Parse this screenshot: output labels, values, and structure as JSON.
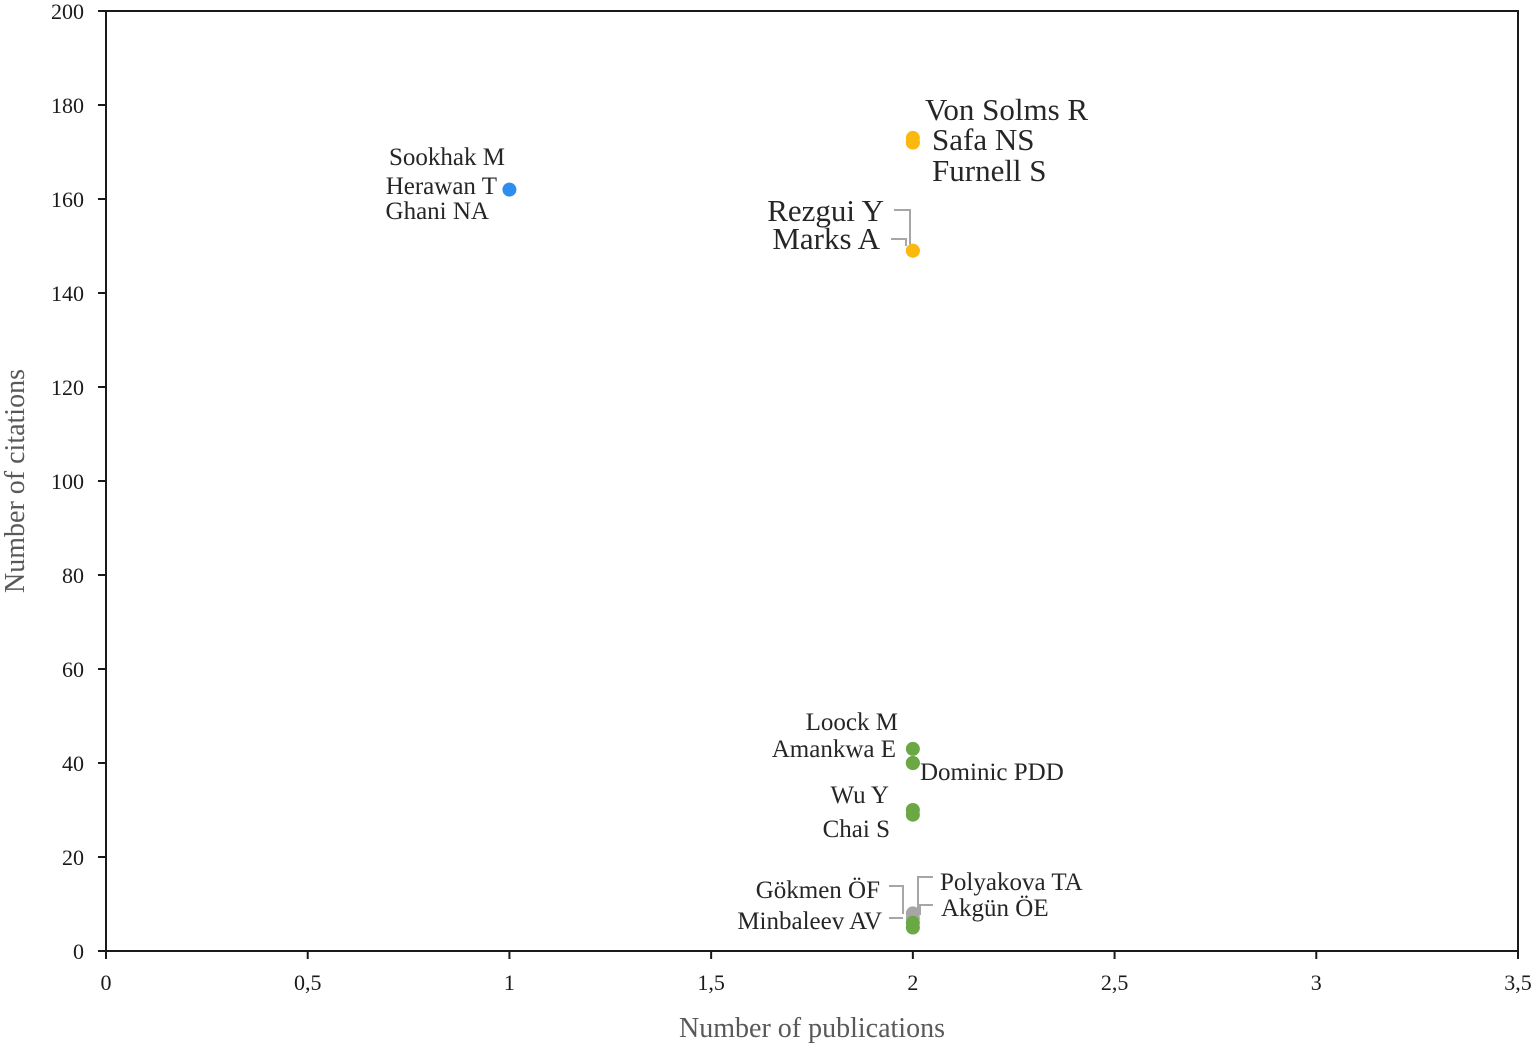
{
  "chart_data": {
    "type": "scatter",
    "title": "",
    "xlabel": "Number of publications",
    "ylabel": "Number of citations",
    "xlim": [
      0,
      3.5
    ],
    "ylim": [
      0,
      200
    ],
    "x_ticks": [
      0,
      0.5,
      1,
      1.5,
      2,
      2.5,
      3,
      3.5
    ],
    "x_tick_labels": [
      "0",
      "0,5",
      "1",
      "1,5",
      "2",
      "2,5",
      "3",
      "3,5"
    ],
    "y_ticks": [
      0,
      20,
      40,
      60,
      80,
      100,
      120,
      140,
      160,
      180,
      200
    ],
    "y_tick_labels": [
      "0",
      "20",
      "40",
      "60",
      "80",
      "100",
      "120",
      "140",
      "160",
      "180",
      "200"
    ],
    "grid": false,
    "legend": "none",
    "colors": {
      "blue": "#2e8ef0",
      "orange": "#fbb80e",
      "green": "#6aa843",
      "grey": "#a6a6a6"
    },
    "points": [
      {
        "x": 1,
        "y": 162,
        "color": "#2e8ef0",
        "labels": [
          "Sookhak M",
          "Herawan T",
          "Ghani NA"
        ]
      },
      {
        "x": 2,
        "y": 173,
        "color": "#fbb80e",
        "labels": [
          "Von Solms R"
        ]
      },
      {
        "x": 2,
        "y": 172,
        "color": "#fbb80e",
        "labels": [
          "Safa NS"
        ]
      },
      {
        "x": 2,
        "y": 172,
        "color": "#fbb80e",
        "labels": [
          "Furnell S"
        ]
      },
      {
        "x": 2,
        "y": 149,
        "color": "#fbb80e",
        "labels": [
          "Rezgui Y"
        ]
      },
      {
        "x": 2,
        "y": 149,
        "color": "#fbb80e",
        "labels": [
          "Marks A"
        ]
      },
      {
        "x": 2,
        "y": 43,
        "color": "#6aa843",
        "labels": [
          "Loock M"
        ]
      },
      {
        "x": 2,
        "y": 40,
        "color": "#6aa843",
        "labels": [
          "Amankwa E"
        ]
      },
      {
        "x": 2,
        "y": 40,
        "color": "#6aa843",
        "labels": [
          "Dominic PDD"
        ]
      },
      {
        "x": 2,
        "y": 30,
        "color": "#6aa843",
        "labels": [
          "Wu Y"
        ]
      },
      {
        "x": 2,
        "y": 29,
        "color": "#6aa843",
        "labels": [
          "Chai S"
        ]
      },
      {
        "x": 2,
        "y": 8,
        "color": "#a6a6a6",
        "labels": [
          "Gökmen ÖF"
        ]
      },
      {
        "x": 2,
        "y": 7,
        "color": "#a6a6a6",
        "labels": [
          "Polyakova TA"
        ]
      },
      {
        "x": 2,
        "y": 6,
        "color": "#6aa843",
        "labels": [
          "Akgün ÖE"
        ]
      },
      {
        "x": 2,
        "y": 5,
        "color": "#6aa843",
        "labels": [
          "Minbaleev AV"
        ]
      }
    ]
  }
}
